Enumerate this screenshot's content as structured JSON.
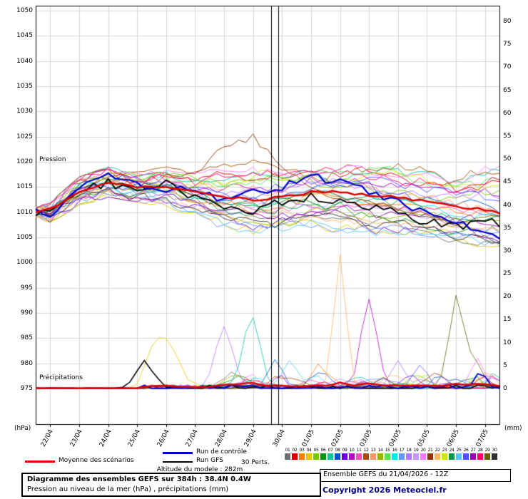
{
  "chart_data": {
    "type": "line",
    "title": "Diagramme des ensembles GEFS sur 384h : 38.4N 0.4W",
    "subtitle": "Pression au niveau de la mer (hPa) , précipitations (mm)",
    "x_axis": {
      "unit_left": "(hPa)",
      "unit_right": "(mm)",
      "dates": [
        "22/04",
        "23/04",
        "24/04",
        "25/04",
        "26/04",
        "27/04",
        "28/04",
        "29/04",
        "30/04",
        "01/05",
        "02/05",
        "03/05",
        "04/05",
        "05/05",
        "06/05",
        "07/05"
      ],
      "hours_range": [
        0,
        384
      ],
      "first_date_hour": 12,
      "hours_per_day": 24
    },
    "y_left": {
      "label": "Pression",
      "min": 975,
      "max": 1050,
      "step": 5,
      "ticks": [
        975,
        980,
        985,
        990,
        995,
        1000,
        1005,
        1010,
        1015,
        1020,
        1025,
        1030,
        1035,
        1040,
        1045,
        1050
      ]
    },
    "y_right": {
      "label": "Précipitations",
      "min": 0,
      "max": 80,
      "step": 5,
      "ticks": [
        0,
        5,
        10,
        15,
        20,
        25,
        30,
        35,
        40,
        45,
        50,
        55,
        60,
        65,
        70,
        75,
        80
      ]
    },
    "grid": true,
    "marker_lines_hours": [
      195,
      201
    ],
    "waypoint_hours": [
      0,
      12,
      36,
      60,
      84,
      108,
      132,
      156,
      180,
      204,
      228,
      252,
      276,
      300,
      324,
      348,
      372,
      384
    ],
    "pressure": {
      "mean": [
        1010,
        1010.5,
        1014,
        1016,
        1015,
        1015,
        1014,
        1013,
        1012.5,
        1013,
        1014,
        1014,
        1013.5,
        1013,
        1012,
        1011,
        1010.5,
        1010
      ],
      "control": [
        1010,
        1009,
        1015,
        1017,
        1016,
        1014,
        1015,
        1012,
        1014,
        1015,
        1017,
        1016,
        1014,
        1012,
        1010,
        1008,
        1006,
        1005
      ],
      "gfs": [
        1010,
        1010,
        1014,
        1016,
        1014,
        1016,
        1013,
        1011,
        1010,
        1012,
        1013,
        1012,
        1011,
        1010,
        1008,
        1007,
        1009,
        1008
      ],
      "envelope_min": [
        1009,
        1008,
        1011,
        1013,
        1012,
        1011,
        1009,
        1006,
        1005,
        1005,
        1006,
        1005,
        1004,
        1004,
        1004,
        1003,
        1002,
        1002
      ],
      "envelope_max": [
        1011,
        1012,
        1017,
        1019,
        1018,
        1019,
        1018,
        1020,
        1022,
        1021,
        1021,
        1021,
        1021,
        1020,
        1020,
        1019,
        1021,
        1022
      ],
      "outlier_member": {
        "index": 20,
        "values": [
          1010,
          1010,
          1015,
          1017,
          1016,
          1017,
          1018,
          1023,
          1025,
          1019,
          1015,
          1013,
          1012,
          1011,
          1010,
          1008,
          1005,
          1004
        ]
      }
    },
    "precipitation": {
      "baseline_max_mm": 0.8,
      "spikes": [
        {
          "series": "gfs",
          "hour": 90,
          "peak_mm": 5.5,
          "width_h": 10
        },
        {
          "series": 3,
          "hour": 96,
          "peak_mm": 4,
          "width_h": 8
        },
        {
          "series": 3,
          "hour": 108,
          "peak_mm": 10,
          "width_h": 14
        },
        {
          "series": 17,
          "hour": 156,
          "peak_mm": 13,
          "width_h": 10
        },
        {
          "series": 6,
          "hour": 180,
          "peak_mm": 14,
          "width_h": 9
        },
        {
          "series": 7,
          "hour": 198,
          "peak_mm": 6,
          "width_h": 8
        },
        {
          "series": 24,
          "hour": 210,
          "peak_mm": 6,
          "width_h": 8
        },
        {
          "series": 2,
          "hour": 234,
          "peak_mm": 5,
          "width_h": 8
        },
        {
          "series": 21,
          "hour": 252,
          "peak_mm": 29,
          "width_h": 7
        },
        {
          "series": 9,
          "hour": 276,
          "peak_mm": 19,
          "width_h": 9
        },
        {
          "series": 17,
          "hour": 300,
          "peak_mm": 6,
          "width_h": 8
        },
        {
          "series": 25,
          "hour": 318,
          "peak_mm": 5,
          "width_h": 8
        },
        {
          "series": 28,
          "hour": 348,
          "peak_mm": 17,
          "width_h": 8
        },
        {
          "series": 19,
          "hour": 366,
          "peak_mm": 6,
          "width_h": 8
        },
        {
          "series": "control",
          "hour": 368,
          "peak_mm": 3.5,
          "width_h": 6
        }
      ]
    },
    "members_count": 30,
    "member_colors": [
      "#707070",
      "#d10000",
      "#ff7d00",
      "#e6c800",
      "#7ac800",
      "#009600",
      "#00c8a0",
      "#0050d1",
      "#6a00d1",
      "#b400c8",
      "#ff50b4",
      "#a05000",
      "#ff9664",
      "#96b400",
      "#50e850",
      "#00e8e8",
      "#6496ff",
      "#b478ff",
      "#c896ff",
      "#ff78ff",
      "#963200",
      "#ffb464",
      "#c8e800",
      "#009650",
      "#50c8ff",
      "#5050ff",
      "#9600b4",
      "#ff0064",
      "#646400",
      "#303030"
    ],
    "series_colors": {
      "mean": "#dd0000",
      "control": "#0000cc",
      "gfs": "#000000"
    },
    "grid_color": "#d4d4d4"
  },
  "plot_labels": {
    "pressure": "Pression",
    "precip": "Précipitations"
  },
  "legend": {
    "mean_label": "Moyenne des scénarios",
    "control_label": "Run de contrôle",
    "gfs_label": "Run GFS",
    "perts_label": "30 Perts.",
    "pert_numbers": [
      "01",
      "02",
      "03",
      "04",
      "05",
      "06",
      "07",
      "08",
      "09",
      "10",
      "11",
      "12",
      "13",
      "14",
      "15",
      "16",
      "17",
      "18",
      "19",
      "20",
      "21",
      "22",
      "23",
      "24",
      "25",
      "26",
      "27",
      "28",
      "29",
      "30"
    ]
  },
  "footer": {
    "altitude_text": "Altitude du modele : 282m",
    "title_line1": "Diagramme des ensembles GEFS sur 384h : 38.4N 0.4W",
    "title_line2": "Pression au niveau de la mer (hPa) , précipitations (mm)",
    "run_info": "Ensemble GEFS du 21/04/2026 - 12Z",
    "copyright": "Copyright 2026 Meteociel.fr"
  }
}
